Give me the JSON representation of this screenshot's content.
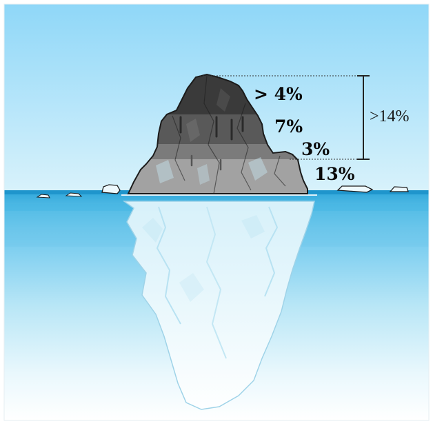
{
  "labels": {
    "band_top": "> 4%",
    "band_second": "7%",
    "band_third": "3%",
    "band_waterline": "13%",
    "bracket_total": ">14%"
  },
  "colors": {
    "sky_top": "#8fd6f7",
    "sky_bottom": "#d7f1fb",
    "water_surface": "#3aaedf",
    "water_deep": "#ffffff",
    "ice_dark": "#3a3a3a",
    "ice_mid": "#5a5a5a",
    "ice_light": "#7c7c7c",
    "ice_lightest": "#a3a3a3",
    "outline": "#1b1b1b"
  }
}
